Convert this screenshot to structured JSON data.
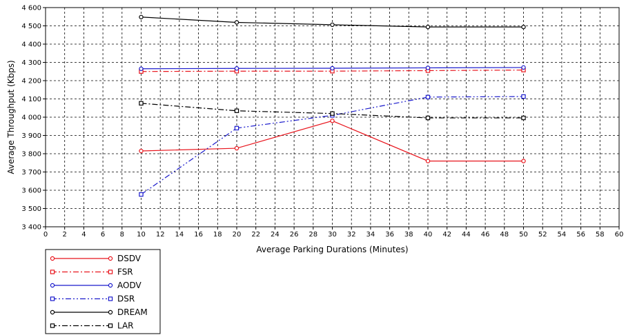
{
  "chart_data": {
    "type": "line",
    "title": "",
    "xlabel": "Average Parking Durations (Minutes)",
    "ylabel": "Average Throughput (Kbps)",
    "xlim": [
      0,
      60
    ],
    "ylim": [
      3400,
      4600
    ],
    "x_ticks": [
      0,
      2,
      4,
      6,
      8,
      10,
      12,
      14,
      16,
      18,
      20,
      22,
      24,
      26,
      28,
      30,
      32,
      34,
      36,
      38,
      40,
      42,
      44,
      46,
      48,
      50,
      52,
      54,
      56,
      58,
      60
    ],
    "y_ticks": [
      3400,
      3500,
      3600,
      3700,
      3800,
      3900,
      4000,
      4100,
      4200,
      4300,
      4400,
      4500,
      4600
    ],
    "y_tick_labels": [
      "3 400",
      "3 500",
      "3 600",
      "3 700",
      "3 800",
      "3 900",
      "4 000",
      "4 100",
      "4 200",
      "4 300",
      "4 400",
      "4 500",
      "4 600"
    ],
    "grid": true,
    "legend_position": "bottom-left",
    "x": [
      10,
      20,
      30,
      40,
      50
    ],
    "series": [
      {
        "name": "DSDV",
        "values": [
          3815,
          3830,
          3980,
          3760,
          3760
        ],
        "color": "#e8141c",
        "dash": "solid",
        "marker": "circle"
      },
      {
        "name": "FSR",
        "values": [
          4250,
          4252,
          4252,
          4255,
          4258
        ],
        "color": "#e8141c",
        "dash": "dashdot",
        "marker": "square"
      },
      {
        "name": "AODV",
        "values": [
          4265,
          4267,
          4268,
          4270,
          4272
        ],
        "color": "#1919cc",
        "dash": "solid",
        "marker": "circle"
      },
      {
        "name": "DSR",
        "values": [
          3577,
          3940,
          4010,
          4110,
          4113
        ],
        "color": "#1919cc",
        "dash": "dashdotdot",
        "marker": "square"
      },
      {
        "name": "DREAM",
        "values": [
          4548,
          4519,
          4506,
          4494,
          4494
        ],
        "color": "#000000",
        "dash": "solid",
        "marker": "circle"
      },
      {
        "name": "LAR",
        "values": [
          4076,
          4035,
          4020,
          3996,
          3996
        ],
        "color": "#000000",
        "dash": "dashdot",
        "marker": "square"
      }
    ]
  }
}
